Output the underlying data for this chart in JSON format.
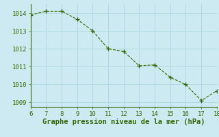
{
  "x": [
    6,
    7,
    8,
    9,
    10,
    11,
    12,
    13,
    14,
    15,
    16,
    17,
    18
  ],
  "y": [
    1013.9,
    1014.1,
    1014.1,
    1013.65,
    1013.0,
    1012.0,
    1011.85,
    1011.05,
    1011.1,
    1010.4,
    1010.0,
    1009.1,
    1009.65
  ],
  "xlim": [
    6,
    18
  ],
  "ylim": [
    1008.75,
    1014.5
  ],
  "xticks": [
    6,
    7,
    8,
    9,
    10,
    11,
    12,
    13,
    14,
    15,
    16,
    17,
    18
  ],
  "yticks": [
    1009,
    1010,
    1011,
    1012,
    1013,
    1014
  ],
  "xlabel": "Graphe pression niveau de la mer (hPa)",
  "line_color": "#336600",
  "marker_color": "#336600",
  "bg_color": "#cdeaf2",
  "grid_color": "#b0d8e0",
  "border_color": "#336600",
  "tick_color": "#336600",
  "label_color": "#336600",
  "tick_fontsize": 6.5,
  "label_fontsize": 7.5
}
